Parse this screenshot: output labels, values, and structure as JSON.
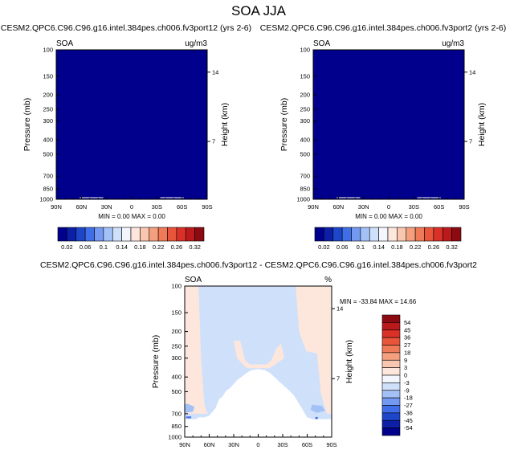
{
  "page_title": "SOA JJA",
  "chart_data": [
    {
      "type": "heatmap",
      "title": "CESM2.QPC6.C96.C96.g16.intel.384pes.ch006.fv3port12 (yrs 2-6)",
      "left_label": "SOA",
      "right_label": "ug/m3",
      "ylabel": "Pressure (mb)",
      "ylabel_right": "Height (km)",
      "x_ticks": [
        "90N",
        "60N",
        "30N",
        "0",
        "30S",
        "60S",
        "90S"
      ],
      "x_values": [
        90,
        60,
        30,
        0,
        -30,
        -60,
        -90
      ],
      "y_ticks": [
        100,
        150,
        200,
        250,
        300,
        400,
        500,
        700,
        850,
        1000
      ],
      "y_ticks_right": [
        14,
        7
      ],
      "ylim": [
        100,
        1000
      ],
      "fill_value": 0.0,
      "stats": "MIN = 0.00  MAX = 0.00",
      "colorbar": {
        "labels": [
          "0.02",
          "0.06",
          "0.1",
          "0.14",
          "0.18",
          "0.22",
          "0.26",
          "0.32"
        ],
        "colors": [
          "#00008c",
          "#0c1fa6",
          "#1d46c9",
          "#3f6ee8",
          "#7399f2",
          "#a3c1f7",
          "#cfe0fb",
          "#f3f6fc",
          "#fde6dc",
          "#f9c6b0",
          "#f4a07f",
          "#ef7a57",
          "#e8553a",
          "#d93128",
          "#bb1a1c",
          "#8c0a12"
        ]
      }
    },
    {
      "type": "heatmap",
      "title": "CESM2.QPC6.C96.C96.g16.intel.384pes.ch006.fv3port2 (yrs 2-6)",
      "left_label": "SOA",
      "right_label": "ug/m3",
      "ylabel": "Pressure (mb)",
      "ylabel_right": "Height (km)",
      "x_ticks": [
        "90N",
        "60N",
        "30N",
        "0",
        "30S",
        "60S",
        "90S"
      ],
      "x_values": [
        90,
        60,
        30,
        0,
        -30,
        -60,
        -90
      ],
      "y_ticks": [
        100,
        150,
        200,
        250,
        300,
        400,
        500,
        700,
        850,
        1000
      ],
      "y_ticks_right": [
        14,
        7
      ],
      "ylim": [
        100,
        1000
      ],
      "fill_value": 0.0,
      "stats": "MIN = 0.00  MAX = 0.00",
      "colorbar": {
        "labels": [
          "0.02",
          "0.06",
          "0.1",
          "0.14",
          "0.18",
          "0.22",
          "0.26",
          "0.32"
        ],
        "colors": [
          "#00008c",
          "#0c1fa6",
          "#1d46c9",
          "#3f6ee8",
          "#7399f2",
          "#a3c1f7",
          "#cfe0fb",
          "#f3f6fc",
          "#fde6dc",
          "#f9c6b0",
          "#f4a07f",
          "#ef7a57",
          "#e8553a",
          "#d93128",
          "#bb1a1c",
          "#8c0a12"
        ]
      }
    },
    {
      "type": "heatmap",
      "title": "CESM2.QPC6.C96.C96.g16.intel.384pes.ch006.fv3port12 - CESM2.QPC6.C96.C96.g16.intel.384pes.ch006.fv3port2",
      "left_label": "SOA",
      "right_label": "%",
      "ylabel": "Pressure (mb)",
      "ylabel_right": "Height (km)",
      "x_ticks": [
        "90N",
        "60N",
        "30N",
        "0",
        "30S",
        "60S",
        "90S"
      ],
      "x_values": [
        90,
        60,
        30,
        0,
        -30,
        -60,
        -90
      ],
      "y_ticks": [
        100,
        150,
        200,
        250,
        300,
        400,
        500,
        700,
        850,
        1000
      ],
      "y_ticks_right": [
        14,
        7
      ],
      "ylim": [
        100,
        1000
      ],
      "stats": "MIN = -33.84  MAX = 14.66",
      "regions": [
        {
          "name": "positive-band-north",
          "level": 3,
          "color": "#fde6dc",
          "points": [
            [
              90,
              100
            ],
            [
              73,
              100
            ],
            [
              70,
              300
            ],
            [
              66,
              600
            ],
            [
              62,
              700
            ],
            [
              90,
              700
            ]
          ]
        },
        {
          "name": "positive-band-south",
          "level": 3,
          "color": "#fde6dc",
          "points": [
            [
              -46,
              100
            ],
            [
              -90,
              100
            ],
            [
              -90,
              700
            ],
            [
              -84,
              700
            ],
            [
              -76,
              500
            ],
            [
              -62,
              300
            ],
            [
              -50,
              200
            ]
          ]
        },
        {
          "name": "positive-lobe-tropics",
          "level": 3,
          "color": "#fde6dc",
          "points": [
            [
              30,
              230
            ],
            [
              22,
              230
            ],
            [
              16,
              310
            ],
            [
              10,
              330
            ],
            [
              -10,
              330
            ],
            [
              -16,
              310
            ],
            [
              -22,
              260
            ],
            [
              -28,
              240
            ],
            [
              -32,
              300
            ],
            [
              -14,
              350
            ],
            [
              14,
              350
            ],
            [
              26,
              300
            ]
          ]
        },
        {
          "name": "negative-column-south",
          "level": -3,
          "color": "#cfe0fb",
          "points": [
            [
              -60,
              270
            ],
            [
              -72,
              280
            ],
            [
              -76,
              460
            ],
            [
              -76,
              700
            ],
            [
              -62,
              700
            ],
            [
              -58,
              560
            ]
          ]
        },
        {
          "name": "negative-pocket-north",
          "level": -9,
          "color": "#a3c1f7",
          "points": [
            [
              87,
              600
            ],
            [
              78,
              630
            ],
            [
              80,
              680
            ],
            [
              90,
              690
            ],
            [
              90,
              610
            ]
          ]
        },
        {
          "name": "negative-pocket-south",
          "level": -9,
          "color": "#a3c1f7",
          "points": [
            [
              -66,
              610
            ],
            [
              -78,
              620
            ],
            [
              -82,
              670
            ],
            [
              -72,
              690
            ],
            [
              -64,
              660
            ]
          ]
        },
        {
          "name": "negative-cell-south-edge",
          "level": -27,
          "color": "#3f6ee8",
          "points": [
            [
              -70,
              735
            ],
            [
              -73,
              735
            ],
            [
              -73,
              760
            ],
            [
              -70,
              760
            ]
          ]
        },
        {
          "name": "negative-cell-north-edge",
          "level": -27,
          "color": "#3f6ee8",
          "points": [
            [
              88,
              730
            ],
            [
              82,
              730
            ],
            [
              82,
              750
            ],
            [
              88,
              750
            ]
          ]
        }
      ],
      "terrain": [
        [
          90,
          1000
        ],
        [
          90,
          760
        ],
        [
          76,
          760
        ],
        [
          73,
          740
        ],
        [
          66,
          740
        ],
        [
          60,
          720
        ],
        [
          52,
          640
        ],
        [
          48,
          560
        ],
        [
          44,
          540
        ],
        [
          40,
          500
        ],
        [
          34,
          470
        ],
        [
          26,
          420
        ],
        [
          18,
          390
        ],
        [
          12,
          370
        ],
        [
          8,
          360
        ],
        [
          0,
          355
        ],
        [
          -8,
          360
        ],
        [
          -14,
          375
        ],
        [
          -20,
          400
        ],
        [
          -28,
          440
        ],
        [
          -36,
          480
        ],
        [
          -44,
          530
        ],
        [
          -50,
          600
        ],
        [
          -56,
          680
        ],
        [
          -60,
          740
        ],
        [
          -66,
          760
        ],
        [
          -90,
          760
        ],
        [
          -90,
          1000
        ]
      ],
      "colorbar": {
        "labels": [
          "54",
          "45",
          "36",
          "27",
          "18",
          "9",
          "3",
          "0",
          "-3",
          "-9",
          "-18",
          "-27",
          "-36",
          "-45",
          "-54"
        ],
        "colors": [
          "#8c0a12",
          "#bb1a1c",
          "#d93128",
          "#e8553a",
          "#ef7a57",
          "#f4a07f",
          "#f9c6b0",
          "#fde6dc",
          "#f3f6fc",
          "#cfe0fb",
          "#a3c1f7",
          "#7399f2",
          "#3f6ee8",
          "#1d46c9",
          "#0c1fa6",
          "#00008c"
        ]
      }
    }
  ]
}
